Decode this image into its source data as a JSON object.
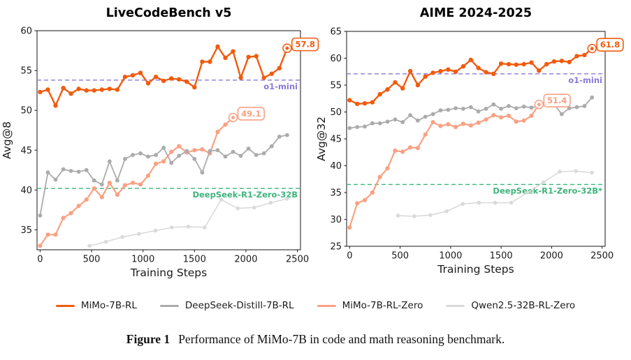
{
  "colors": {
    "orange": "#f15b0f",
    "salmon": "#f9a183",
    "gray": "#ababab",
    "lightgray": "#dadada",
    "purple": "#8b78d8",
    "green": "#3eb47c",
    "axis": "#2a2a2a",
    "text": "#1a1a1a"
  },
  "legend": {
    "items": [
      {
        "label": "MiMo-7B-RL",
        "color": "orange"
      },
      {
        "label": "DeepSeek-Distill-7B-RL",
        "color": "gray"
      },
      {
        "label": "MiMo-7B-RL-Zero",
        "color": "salmon"
      },
      {
        "label": "Qwen2.5-32B-RL-Zero",
        "color": "lightgray"
      }
    ]
  },
  "caption": {
    "label": "Figure 1",
    "text": "Performance of MiMo-7B in code and math reasoning benchmark."
  },
  "chart_data": [
    {
      "type": "line",
      "title": "LiveCodeBench v5",
      "xlabel": "Training Steps",
      "ylabel": "Avg@8",
      "xlim": [
        0,
        2500
      ],
      "ylim": [
        32.5,
        60
      ],
      "xticks": [
        0,
        500,
        1000,
        1500,
        2000,
        2500
      ],
      "yticks": [
        35,
        40,
        45,
        50,
        55,
        60
      ],
      "grid": false,
      "legend_position": "below-figure",
      "hlines": [
        {
          "label": "o1-mini",
          "value": 53.8,
          "color": "purple"
        },
        {
          "label": "DeepSeek-R1-Zero-32B",
          "value": 40.2,
          "color": "green"
        }
      ],
      "series": [
        {
          "name": "MiMo-7B-RL",
          "color": "orange",
          "end_label": "57.8",
          "x": [
            0,
            75,
            150,
            225,
            300,
            375,
            450,
            525,
            600,
            675,
            750,
            825,
            900,
            975,
            1050,
            1125,
            1200,
            1275,
            1350,
            1425,
            1500,
            1575,
            1650,
            1725,
            1800,
            1875,
            1950,
            2025,
            2100,
            2175,
            2250,
            2325,
            2400
          ],
          "values": [
            52.3,
            52.6,
            50.6,
            52.8,
            52.1,
            52.7,
            52.5,
            52.5,
            52.6,
            52.7,
            52.6,
            54.2,
            54.4,
            54.7,
            53.4,
            54.2,
            53.7,
            54.0,
            53.9,
            53.6,
            52.9,
            56.1,
            56.1,
            58.0,
            56.6,
            57.4,
            54.1,
            56.7,
            56.8,
            54.1,
            54.6,
            55.3,
            57.8
          ]
        },
        {
          "name": "DeepSeek-Distill-7B-RL",
          "color": "gray",
          "x": [
            0,
            75,
            150,
            225,
            300,
            375,
            450,
            525,
            600,
            675,
            750,
            825,
            900,
            975,
            1050,
            1125,
            1200,
            1275,
            1350,
            1425,
            1500,
            1575,
            1650,
            1725,
            1800,
            1875,
            1950,
            2025,
            2100,
            2175,
            2250,
            2325,
            2400
          ],
          "values": [
            36.8,
            42.2,
            41.3,
            42.6,
            42.4,
            42.3,
            42.5,
            41.2,
            40.7,
            43.6,
            41.2,
            43.9,
            44.4,
            44.6,
            44.2,
            44.4,
            45.3,
            43.4,
            44.3,
            44.9,
            43.9,
            42.2,
            44.9,
            45.0,
            44.2,
            44.8,
            44.3,
            45.2,
            44.4,
            44.6,
            45.5,
            46.7,
            46.9
          ]
        },
        {
          "name": "MiMo-7B-RL-Zero",
          "color": "salmon",
          "end_label": "49.1",
          "x": [
            0,
            75,
            150,
            225,
            300,
            375,
            450,
            525,
            600,
            675,
            750,
            825,
            900,
            975,
            1050,
            1125,
            1200,
            1275,
            1350,
            1425,
            1500,
            1575,
            1650,
            1725,
            1800,
            1875
          ],
          "values": [
            33.0,
            34.4,
            34.4,
            36.5,
            37.1,
            38.0,
            38.8,
            40.2,
            39.1,
            40.9,
            39.4,
            40.6,
            40.9,
            40.7,
            41.8,
            43.3,
            43.6,
            44.8,
            45.5,
            44.7,
            45.0,
            45.1,
            44.6,
            47.3,
            48.2,
            49.1
          ]
        },
        {
          "name": "Qwen2.5-32B-RL-Zero",
          "color": "lightgray",
          "x": [
            480,
            640,
            800,
            960,
            1120,
            1280,
            1440,
            1600,
            1760,
            1920,
            2080,
            2240,
            2400
          ],
          "values": [
            33.0,
            33.5,
            34.1,
            34.5,
            34.9,
            35.3,
            35.4,
            35.3,
            38.8,
            37.7,
            37.8,
            38.4,
            38.9
          ]
        }
      ]
    },
    {
      "type": "line",
      "title": "AIME 2024-2025",
      "xlabel": "Training Steps",
      "ylabel": "Avg@32",
      "xlim": [
        0,
        2500
      ],
      "ylim": [
        25,
        65
      ],
      "xticks": [
        0,
        500,
        1000,
        1500,
        2000,
        2500
      ],
      "yticks": [
        25,
        30,
        35,
        40,
        45,
        50,
        55,
        60,
        65
      ],
      "grid": false,
      "legend_position": "below-figure",
      "hlines": [
        {
          "label": "o1-mini",
          "value": 57.1,
          "color": "purple"
        },
        {
          "label": "DeepSeek-R1-Zero-32B*",
          "value": 36.5,
          "color": "green"
        }
      ],
      "series": [
        {
          "name": "MiMo-7B-RL",
          "color": "orange",
          "end_label": "61.8",
          "x": [
            0,
            75,
            150,
            225,
            300,
            375,
            450,
            525,
            600,
            675,
            750,
            825,
            900,
            975,
            1050,
            1125,
            1200,
            1275,
            1350,
            1425,
            1500,
            1575,
            1650,
            1725,
            1800,
            1875,
            1950,
            2025,
            2100,
            2175,
            2250,
            2325,
            2400
          ],
          "values": [
            52.2,
            51.5,
            51.6,
            51.8,
            53.3,
            54.2,
            55.5,
            54.4,
            57.6,
            55.0,
            56.6,
            57.3,
            57.6,
            57.9,
            57.5,
            58.5,
            59.7,
            58.2,
            57.4,
            57.1,
            59.0,
            58.9,
            58.8,
            58.9,
            59.2,
            57.7,
            58.9,
            59.4,
            59.5,
            59.3,
            60.4,
            60.6,
            61.8
          ]
        },
        {
          "name": "DeepSeek-Distill-7B-RL",
          "color": "gray",
          "x": [
            0,
            75,
            150,
            225,
            300,
            375,
            450,
            525,
            600,
            675,
            750,
            825,
            900,
            975,
            1050,
            1125,
            1200,
            1275,
            1350,
            1425,
            1500,
            1575,
            1650,
            1725,
            1800,
            1875,
            1950,
            2025,
            2100,
            2175,
            2250,
            2325,
            2400
          ],
          "values": [
            47.0,
            47.2,
            47.3,
            47.9,
            47.9,
            48.2,
            48.6,
            48.1,
            49.4,
            48.4,
            49.1,
            49.6,
            50.3,
            50.4,
            50.7,
            50.6,
            50.9,
            50.1,
            50.6,
            51.4,
            50.6,
            51.1,
            50.7,
            51.0,
            50.8,
            51.1,
            52.1,
            51.4,
            49.6,
            50.7,
            50.9,
            51.1,
            52.7
          ]
        },
        {
          "name": "MiMo-7B-RL-Zero",
          "color": "salmon",
          "end_label": "51.4",
          "x": [
            0,
            75,
            150,
            225,
            300,
            375,
            450,
            525,
            600,
            675,
            750,
            825,
            900,
            975,
            1050,
            1125,
            1200,
            1275,
            1350,
            1425,
            1500,
            1575,
            1650,
            1725,
            1800,
            1875
          ],
          "values": [
            28.5,
            33.0,
            33.6,
            35.0,
            37.9,
            39.5,
            42.8,
            42.6,
            43.4,
            43.3,
            45.8,
            48.1,
            47.4,
            47.7,
            47.2,
            47.8,
            47.5,
            48.0,
            48.6,
            49.4,
            49.0,
            49.3,
            48.2,
            48.4,
            49.3,
            51.4
          ]
        },
        {
          "name": "Qwen2.5-32B-RL-Zero",
          "color": "lightgray",
          "x": [
            480,
            640,
            800,
            960,
            1120,
            1280,
            1440,
            1600,
            1760,
            1920,
            2080,
            2240,
            2400
          ],
          "values": [
            30.7,
            30.6,
            30.8,
            31.5,
            32.9,
            33.1,
            33.1,
            33.1,
            35.0,
            36.9,
            38.9,
            39.0,
            38.7
          ]
        }
      ]
    }
  ]
}
